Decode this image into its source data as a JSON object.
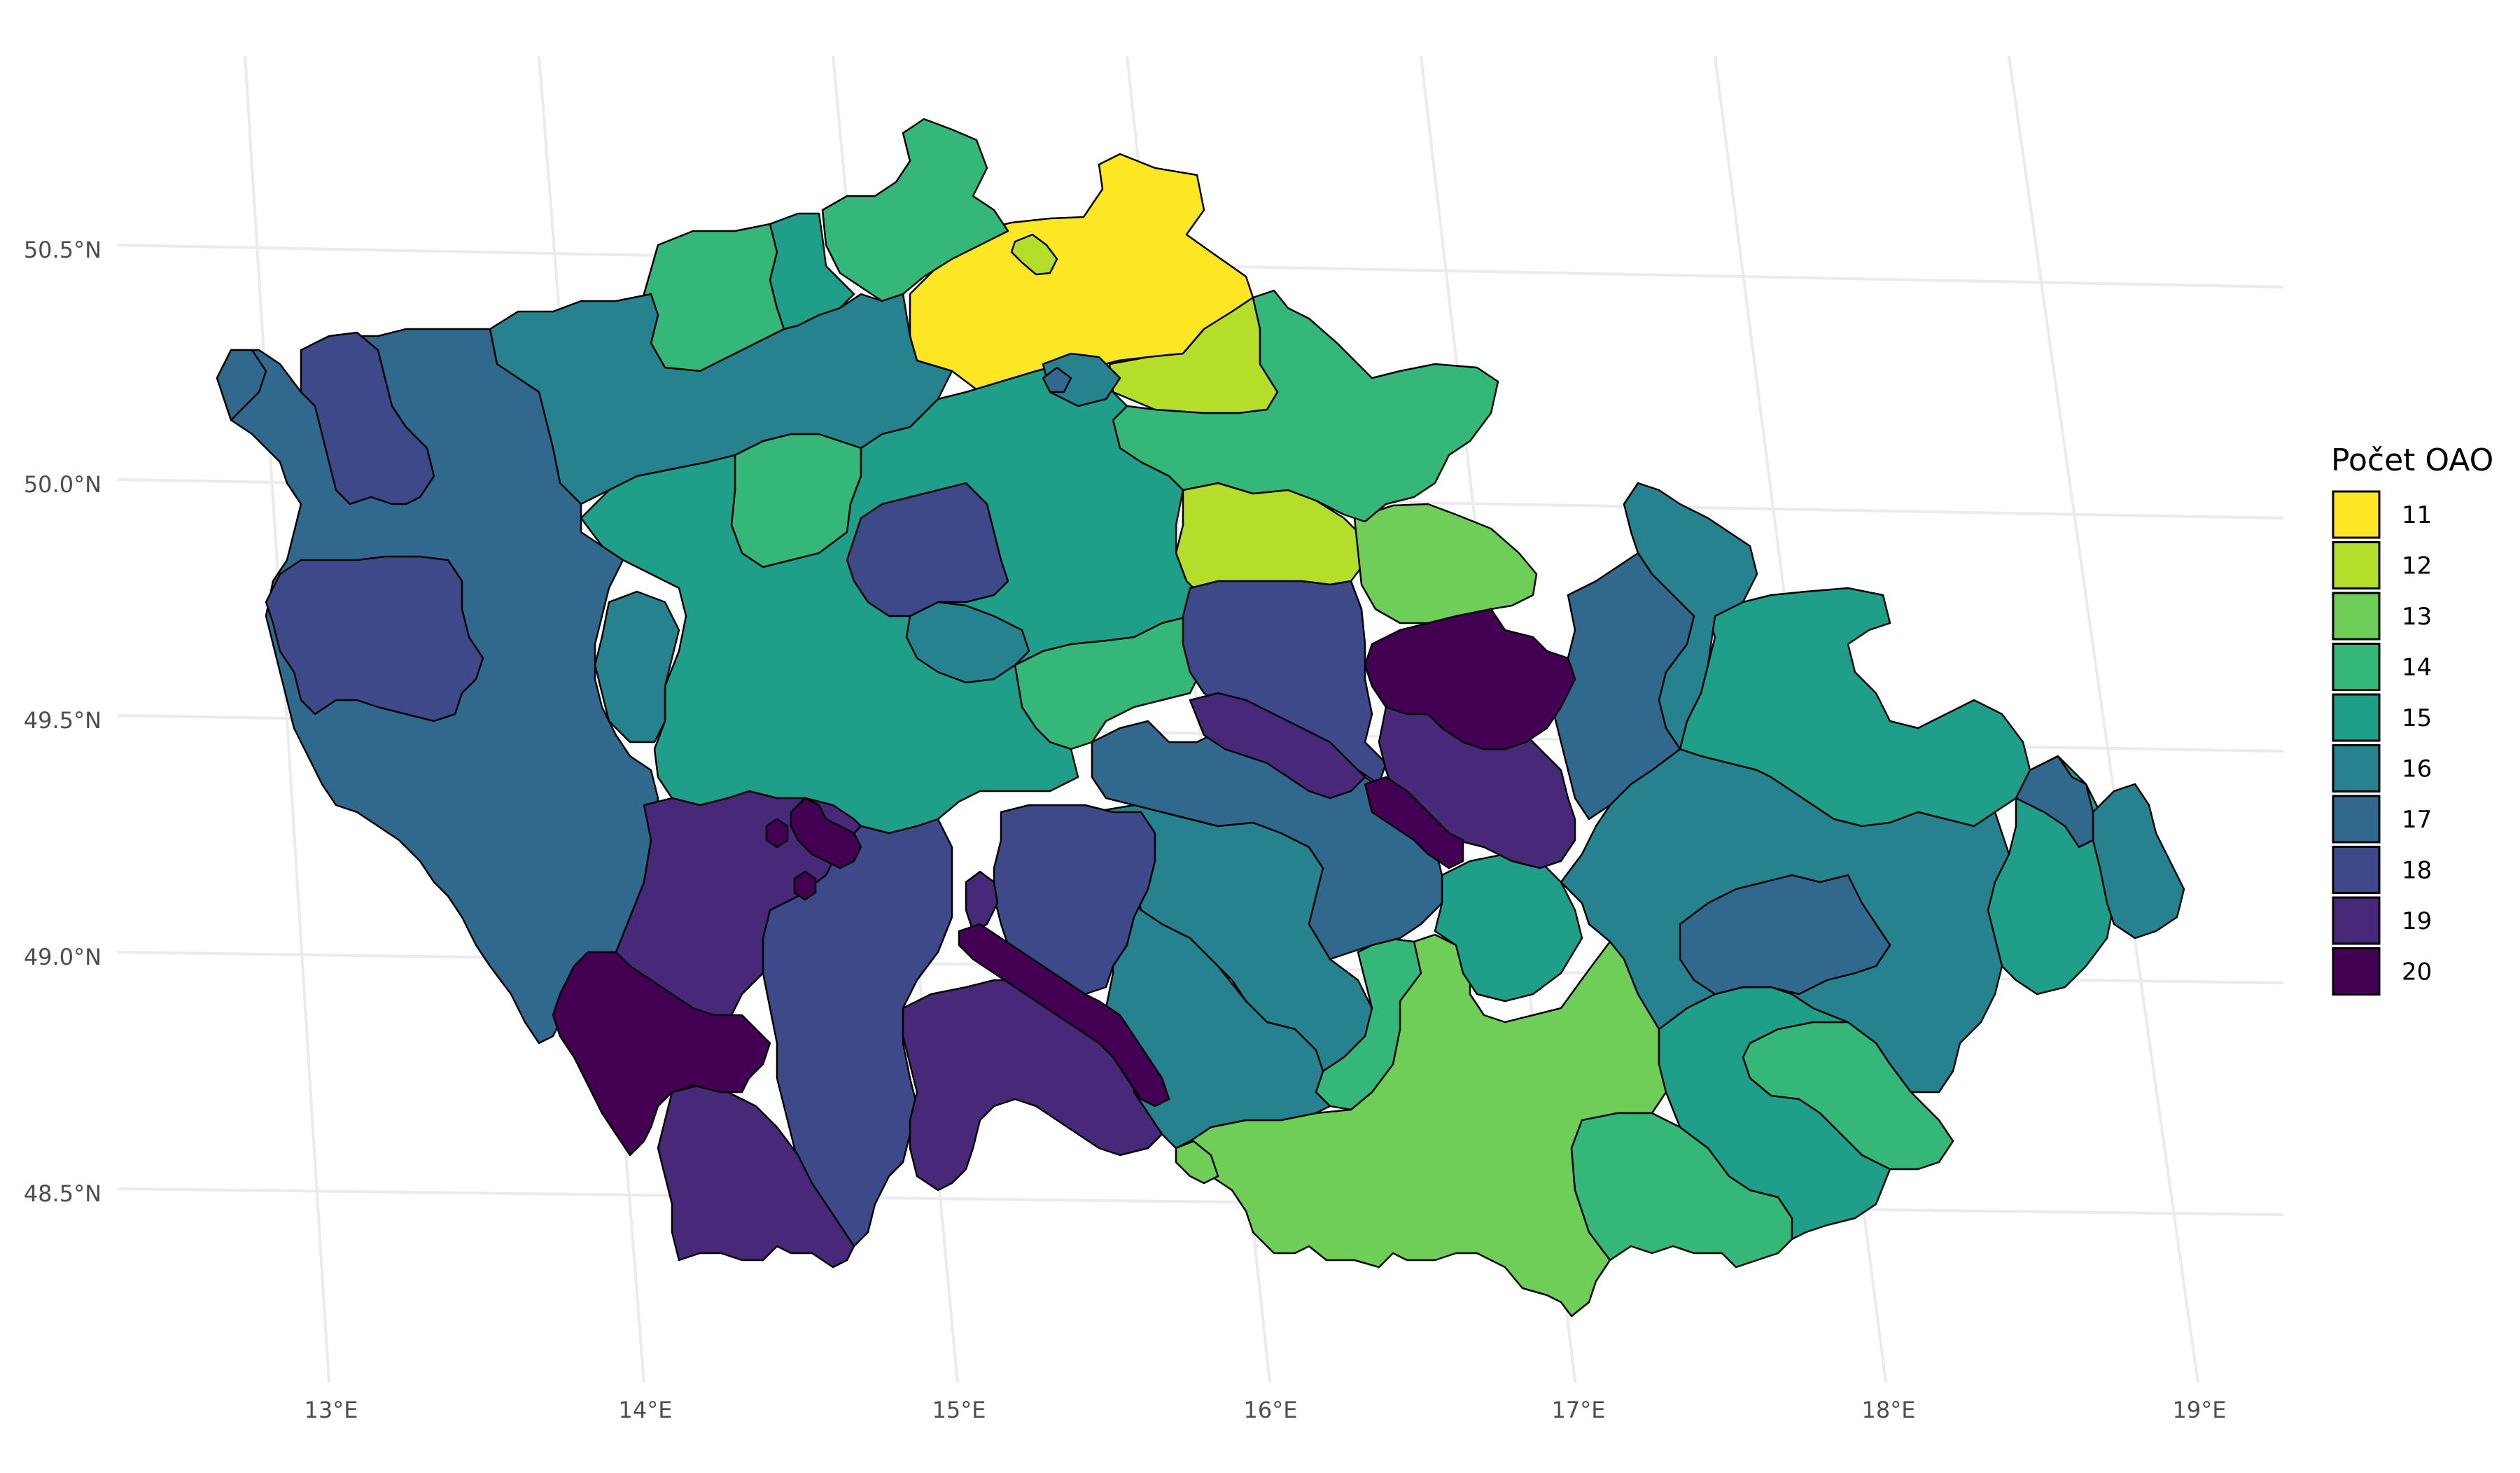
{
  "map": {
    "lat_labels": [
      "50.5°N",
      "50.0°N",
      "49.5°N",
      "49.0°N",
      "48.5°N"
    ],
    "lon_labels": [
      "13°E",
      "14°E",
      "15°E",
      "16°E",
      "17°E",
      "18°E",
      "19°E"
    ],
    "gridline_color": "#ebebeb",
    "hex_border_color": "#000000"
  },
  "legend": {
    "title": "Počet OAO",
    "items": [
      {
        "value": "11",
        "color": "#fde725"
      },
      {
        "value": "12",
        "color": "#b5de2b"
      },
      {
        "value": "13",
        "color": "#6ece58"
      },
      {
        "value": "14",
        "color": "#35b779"
      },
      {
        "value": "15",
        "color": "#1f9e89"
      },
      {
        "value": "16",
        "color": "#26828e"
      },
      {
        "value": "17",
        "color": "#31688e"
      },
      {
        "value": "18",
        "color": "#3e4989"
      },
      {
        "value": "19",
        "color": "#482878"
      },
      {
        "value": "20",
        "color": "#440154"
      }
    ]
  }
}
